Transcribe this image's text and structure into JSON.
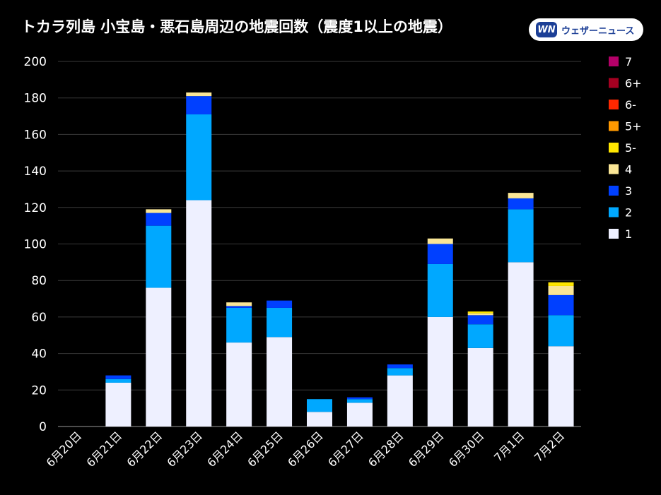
{
  "header": {
    "title": "トカラ列島 小宝島・悪石島周辺の地震回数（震度1以上の地震）",
    "logo_mark": "WN",
    "logo_text": "ウェザーニュース"
  },
  "chart_data": {
    "type": "bar",
    "stacked": true,
    "title": "トカラ列島 小宝島・悪石島周辺の地震回数（震度1以上の地震）",
    "xlabel": "",
    "ylabel": "",
    "ylim": [
      0,
      200
    ],
    "yticks": [
      0,
      20,
      40,
      60,
      80,
      100,
      120,
      140,
      160,
      180,
      200
    ],
    "grid": true,
    "legend_position": "right",
    "categories": [
      "6月20日",
      "6月21日",
      "6月22日",
      "6月23日",
      "6月24日",
      "6月25日",
      "6月26日",
      "6月27日",
      "6月28日",
      "6月29日",
      "6月30日",
      "7月1日",
      "7月2日"
    ],
    "series": [
      {
        "name": "1",
        "color": "#eef0ff",
        "values": [
          0,
          24,
          76,
          124,
          46,
          49,
          8,
          13,
          28,
          60,
          43,
          90,
          44
        ]
      },
      {
        "name": "2",
        "color": "#00a8ff",
        "values": [
          0,
          2,
          34,
          47,
          19,
          16,
          7,
          2,
          4,
          29,
          13,
          29,
          17
        ]
      },
      {
        "name": "3",
        "color": "#0040ff",
        "values": [
          0,
          2,
          7,
          10,
          1,
          4,
          0,
          1,
          2,
          11,
          5,
          6,
          11
        ]
      },
      {
        "name": "4",
        "color": "#fae696",
        "values": [
          0,
          0,
          2,
          2,
          2,
          0,
          0,
          0,
          0,
          3,
          1,
          3,
          5
        ]
      },
      {
        "name": "5-",
        "color": "#ffe600",
        "values": [
          0,
          0,
          0,
          0,
          0,
          0,
          0,
          0,
          0,
          0,
          1,
          0,
          2
        ]
      },
      {
        "name": "5+",
        "color": "#ff9900",
        "values": [
          0,
          0,
          0,
          0,
          0,
          0,
          0,
          0,
          0,
          0,
          0,
          0,
          0
        ]
      },
      {
        "name": "6-",
        "color": "#ff2800",
        "values": [
          0,
          0,
          0,
          0,
          0,
          0,
          0,
          0,
          0,
          0,
          0,
          0,
          0
        ]
      },
      {
        "name": "6+",
        "color": "#a50021",
        "values": [
          0,
          0,
          0,
          0,
          0,
          0,
          0,
          0,
          0,
          0,
          0,
          0,
          0
        ]
      },
      {
        "name": "7",
        "color": "#b40068",
        "values": [
          0,
          0,
          0,
          0,
          0,
          0,
          0,
          0,
          0,
          0,
          0,
          0,
          0
        ]
      }
    ],
    "legend_order": [
      "7",
      "6+",
      "6-",
      "5+",
      "5-",
      "4",
      "3",
      "2",
      "1"
    ]
  }
}
